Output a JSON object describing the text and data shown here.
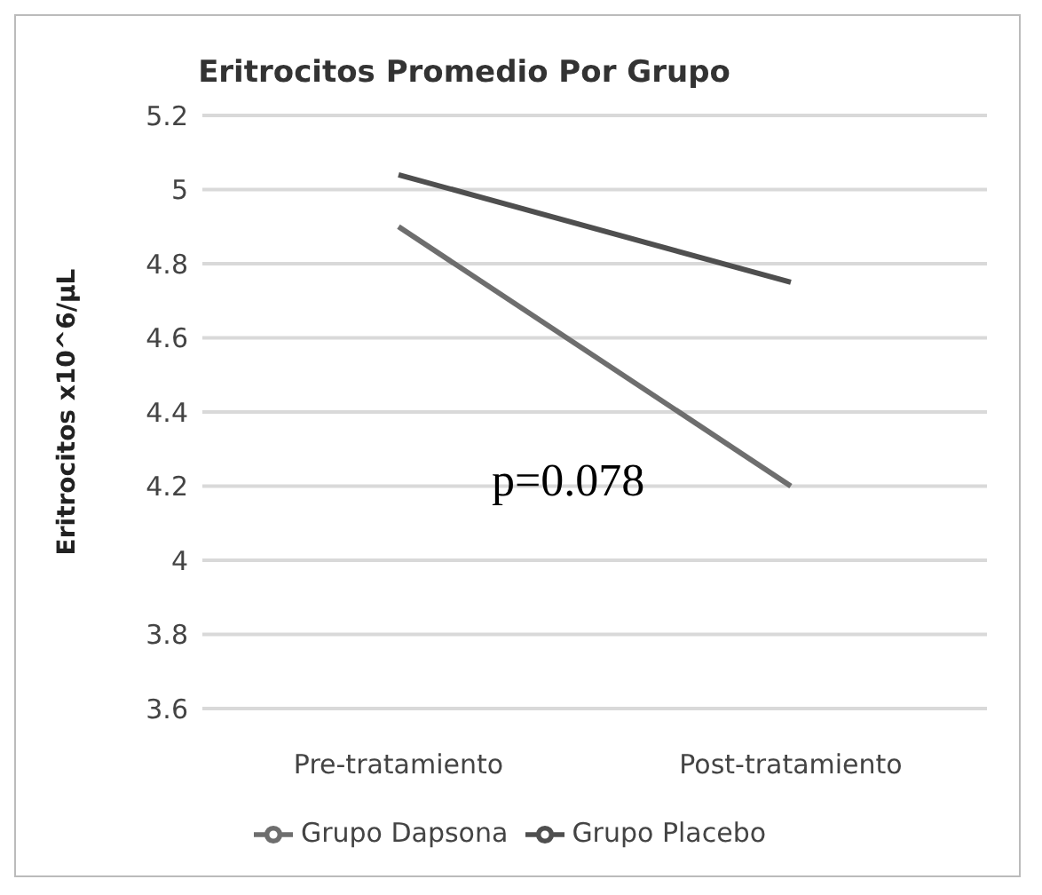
{
  "chart_data": {
    "type": "line",
    "title": "Eritrocitos Promedio Por Grupo",
    "ylabel": "Eritrocitos x10^6/µL",
    "categories": [
      "Pre-tratamiento",
      "Post-tratamiento"
    ],
    "series": [
      {
        "name": "Grupo Dapsona",
        "color": "#6e6e6e",
        "values": [
          4.9,
          4.2
        ]
      },
      {
        "name": "Grupo Placebo",
        "color": "#4f4f4f",
        "values": [
          5.04,
          4.75
        ]
      }
    ],
    "ylim": [
      3.6,
      5.2
    ],
    "yticks": [
      3.6,
      3.8,
      4,
      4.2,
      4.4,
      4.6,
      4.8,
      5,
      5.2
    ],
    "grid": "y",
    "legend": "bottom",
    "marker": "none",
    "line_style": "solid",
    "annotations": [
      "p=0.078"
    ]
  }
}
